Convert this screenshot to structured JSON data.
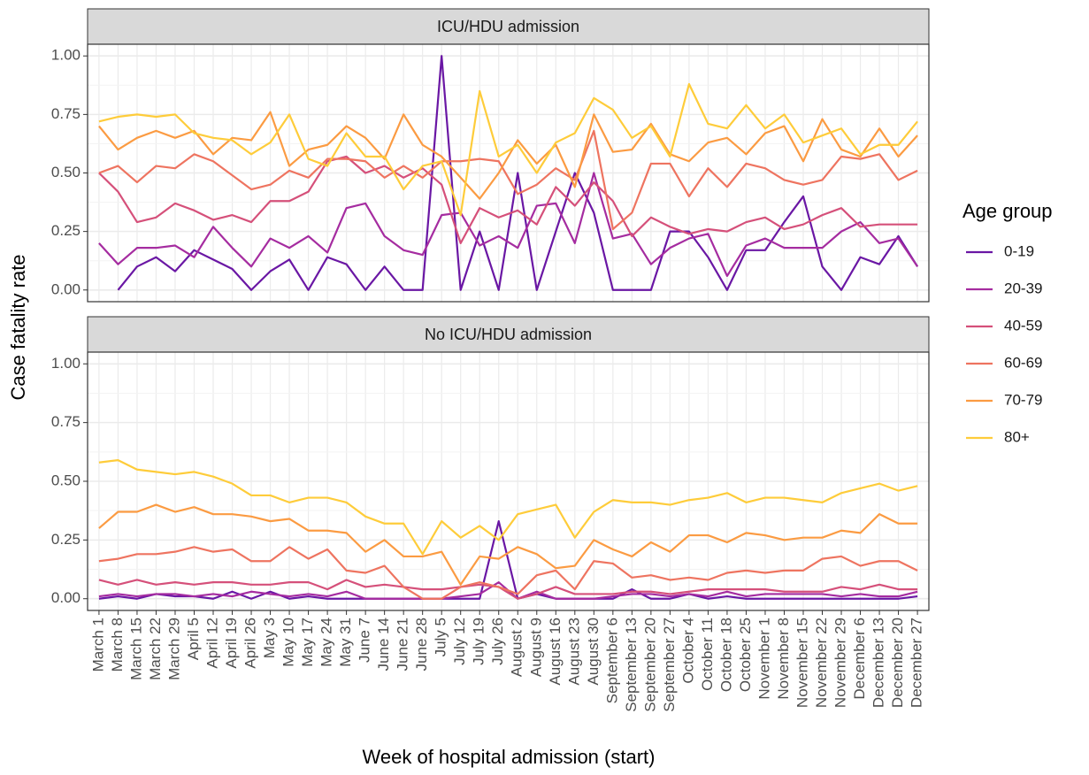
{
  "chart_data": [
    {
      "type": "line",
      "title": "ICU/HDU admission",
      "y_label": "Case fatality rate",
      "legend_title": "Age group",
      "ylim": [
        -0.05,
        1.05
      ],
      "yticks": [
        {
          "value": 0,
          "label": "0.00"
        },
        {
          "value": 0.25,
          "label": "0.25"
        },
        {
          "value": 0.5,
          "label": "0.50"
        },
        {
          "value": 0.75,
          "label": "0.75"
        },
        {
          "value": 1,
          "label": "1.00"
        }
      ],
      "grid": true,
      "series": [
        {
          "name": "0-19",
          "color": "#6a17a4",
          "values": [
            null,
            0.0,
            0.1,
            0.14,
            0.08,
            0.17,
            0.13,
            0.09,
            0.0,
            0.08,
            0.13,
            0.0,
            0.14,
            0.11,
            0.0,
            0.1,
            0.0,
            0.0,
            1.0,
            0.0,
            0.25,
            0.0,
            0.5,
            0.0,
            0.25,
            0.5,
            0.33,
            0.0,
            0.0,
            0.0,
            0.25,
            0.25,
            0.14,
            0.0,
            0.17,
            0.17,
            0.29,
            0.4,
            0.1,
            0.0,
            0.14,
            0.11,
            0.23,
            0.1
          ]
        },
        {
          "name": "20-39",
          "color": "#a52ca0",
          "values": [
            0.2,
            0.11,
            0.18,
            0.18,
            0.19,
            0.14,
            0.27,
            0.18,
            0.1,
            0.22,
            0.18,
            0.23,
            0.16,
            0.35,
            0.37,
            0.23,
            0.17,
            0.15,
            0.32,
            0.33,
            0.19,
            0.23,
            0.18,
            0.36,
            0.37,
            0.2,
            0.5,
            0.22,
            0.24,
            0.11,
            0.18,
            0.22,
            0.24,
            0.06,
            0.19,
            0.22,
            0.18,
            0.18,
            0.18,
            0.25,
            0.29,
            0.2,
            0.22,
            0.1
          ]
        },
        {
          "name": "40-59",
          "color": "#d5507a",
          "values": [
            0.5,
            0.42,
            0.29,
            0.31,
            0.37,
            0.34,
            0.3,
            0.32,
            0.29,
            0.38,
            0.38,
            0.42,
            0.55,
            0.57,
            0.5,
            0.53,
            0.48,
            0.52,
            0.45,
            0.2,
            0.35,
            0.31,
            0.34,
            0.28,
            0.44,
            0.36,
            0.46,
            0.38,
            0.23,
            0.31,
            0.27,
            0.24,
            0.26,
            0.25,
            0.29,
            0.31,
            0.26,
            0.28,
            0.32,
            0.35,
            0.27,
            0.28,
            0.28,
            0.28
          ]
        },
        {
          "name": "60-69",
          "color": "#ee7460",
          "values": [
            0.5,
            0.53,
            0.46,
            0.53,
            0.52,
            0.58,
            0.55,
            0.49,
            0.43,
            0.45,
            0.51,
            0.48,
            0.56,
            0.56,
            0.55,
            0.48,
            0.53,
            0.48,
            0.55,
            0.55,
            0.56,
            0.55,
            0.41,
            0.45,
            0.52,
            0.47,
            0.68,
            0.26,
            0.33,
            0.54,
            0.54,
            0.4,
            0.52,
            0.44,
            0.54,
            0.52,
            0.47,
            0.45,
            0.47,
            0.57,
            0.56,
            0.58,
            0.47,
            0.51
          ]
        },
        {
          "name": "70-79",
          "color": "#fb9b42",
          "values": [
            0.7,
            0.6,
            0.65,
            0.68,
            0.65,
            0.68,
            0.58,
            0.65,
            0.64,
            0.76,
            0.53,
            0.6,
            0.62,
            0.7,
            0.65,
            0.56,
            0.75,
            0.62,
            0.57,
            0.48,
            0.39,
            0.5,
            0.64,
            0.54,
            0.62,
            0.44,
            0.75,
            0.59,
            0.6,
            0.71,
            0.58,
            0.55,
            0.63,
            0.65,
            0.58,
            0.67,
            0.7,
            0.55,
            0.73,
            0.6,
            0.57,
            0.69,
            0.57,
            0.66
          ]
        },
        {
          "name": "80+",
          "color": "#fecc3a",
          "values": [
            0.72,
            0.74,
            0.75,
            0.74,
            0.75,
            0.67,
            0.65,
            0.64,
            0.58,
            0.63,
            0.75,
            0.56,
            0.53,
            0.67,
            0.57,
            0.57,
            0.43,
            0.53,
            0.55,
            0.32,
            0.85,
            0.57,
            0.62,
            0.5,
            0.63,
            0.67,
            0.82,
            0.77,
            0.65,
            0.7,
            0.57,
            0.88,
            0.71,
            0.69,
            0.79,
            0.69,
            0.75,
            0.63,
            0.66,
            0.69,
            0.58,
            0.62,
            0.62,
            0.72
          ]
        }
      ]
    },
    {
      "type": "line",
      "title": "No ICU/HDU admission",
      "x_label": "Week of hospital admission (start)",
      "categories": [
        "March 1",
        "March 8",
        "March 15",
        "March 22",
        "March 29",
        "April 5",
        "April 12",
        "April 19",
        "April 26",
        "May 3",
        "May 10",
        "May 17",
        "May 24",
        "May 31",
        "June 7",
        "June 14",
        "June 21",
        "June 28",
        "July 5",
        "July 12",
        "July 19",
        "July 26",
        "August 2",
        "August 9",
        "August 16",
        "August 23",
        "August 30",
        "September 6",
        "September 13",
        "September 20",
        "September 27",
        "October 4",
        "October 11",
        "October 18",
        "October 25",
        "November 1",
        "November 8",
        "November 15",
        "November 22",
        "November 29",
        "December 6",
        "December 13",
        "December 20",
        "December 27"
      ],
      "ylim": [
        -0.05,
        1.05
      ],
      "yticks": [
        {
          "value": 0,
          "label": "0.00"
        },
        {
          "value": 0.25,
          "label": "0.25"
        },
        {
          "value": 0.5,
          "label": "0.50"
        },
        {
          "value": 0.75,
          "label": "0.75"
        },
        {
          "value": 1,
          "label": "1.00"
        }
      ],
      "grid": true,
      "series": [
        {
          "values": [
            0.0,
            0.01,
            0.0,
            0.02,
            0.01,
            0.01,
            0.0,
            0.03,
            0.0,
            0.03,
            0.0,
            0.01,
            0.0,
            0.0,
            0.0,
            0.0,
            0.0,
            0.0,
            0.0,
            0.0,
            0.0,
            0.33,
            0.0,
            0.02,
            0.0,
            0.0,
            0.0,
            0.0,
            0.04,
            0.0,
            0.0,
            0.02,
            0.0,
            0.01,
            0.0,
            0.0,
            0.0,
            0.0,
            0.0,
            0.0,
            0.0,
            0.0,
            0.0,
            0.01
          ]
        },
        {
          "values": [
            0.01,
            0.02,
            0.01,
            0.02,
            0.02,
            0.01,
            0.02,
            0.01,
            0.03,
            0.02,
            0.01,
            0.02,
            0.01,
            0.03,
            0.0,
            0.0,
            0.0,
            0.0,
            0.0,
            0.01,
            0.02,
            0.07,
            0.0,
            0.03,
            0.0,
            0.0,
            0.0,
            0.01,
            0.02,
            0.02,
            0.01,
            0.02,
            0.01,
            0.03,
            0.01,
            0.02,
            0.02,
            0.02,
            0.02,
            0.01,
            0.02,
            0.01,
            0.01,
            0.03
          ]
        },
        {
          "values": [
            0.08,
            0.06,
            0.08,
            0.06,
            0.07,
            0.06,
            0.07,
            0.07,
            0.06,
            0.06,
            0.07,
            0.07,
            0.04,
            0.08,
            0.05,
            0.06,
            0.05,
            0.04,
            0.04,
            0.05,
            0.06,
            0.05,
            0.0,
            0.02,
            0.05,
            0.02,
            0.02,
            0.02,
            0.03,
            0.03,
            0.02,
            0.03,
            0.04,
            0.04,
            0.04,
            0.04,
            0.03,
            0.03,
            0.03,
            0.05,
            0.04,
            0.06,
            0.04,
            0.04
          ]
        },
        {
          "values": [
            0.16,
            0.17,
            0.19,
            0.19,
            0.2,
            0.22,
            0.2,
            0.21,
            0.16,
            0.16,
            0.22,
            0.17,
            0.21,
            0.12,
            0.11,
            0.14,
            0.05,
            0.0,
            0.0,
            0.05,
            0.07,
            0.05,
            0.02,
            0.1,
            0.12,
            0.04,
            0.16,
            0.15,
            0.09,
            0.1,
            0.08,
            0.09,
            0.08,
            0.11,
            0.12,
            0.11,
            0.12,
            0.12,
            0.17,
            0.18,
            0.14,
            0.16,
            0.16,
            0.12
          ]
        },
        {
          "values": [
            0.3,
            0.37,
            0.37,
            0.4,
            0.37,
            0.39,
            0.36,
            0.36,
            0.35,
            0.33,
            0.34,
            0.29,
            0.29,
            0.28,
            0.2,
            0.25,
            0.18,
            0.18,
            0.2,
            0.06,
            0.18,
            0.17,
            0.22,
            0.19,
            0.13,
            0.14,
            0.25,
            0.21,
            0.18,
            0.24,
            0.2,
            0.27,
            0.27,
            0.24,
            0.28,
            0.27,
            0.25,
            0.26,
            0.26,
            0.29,
            0.28,
            0.36,
            0.32,
            0.32
          ]
        },
        {
          "values": [
            0.58,
            0.59,
            0.55,
            0.54,
            0.53,
            0.54,
            0.52,
            0.49,
            0.44,
            0.44,
            0.41,
            0.43,
            0.43,
            0.41,
            0.35,
            0.32,
            0.32,
            0.19,
            0.33,
            0.26,
            0.31,
            0.25,
            0.36,
            0.38,
            0.4,
            0.26,
            0.37,
            0.42,
            0.41,
            0.41,
            0.4,
            0.42,
            0.43,
            0.45,
            0.41,
            0.43,
            0.43,
            0.42,
            0.41,
            0.45,
            0.47,
            0.49,
            0.46,
            0.48
          ]
        }
      ]
    }
  ]
}
